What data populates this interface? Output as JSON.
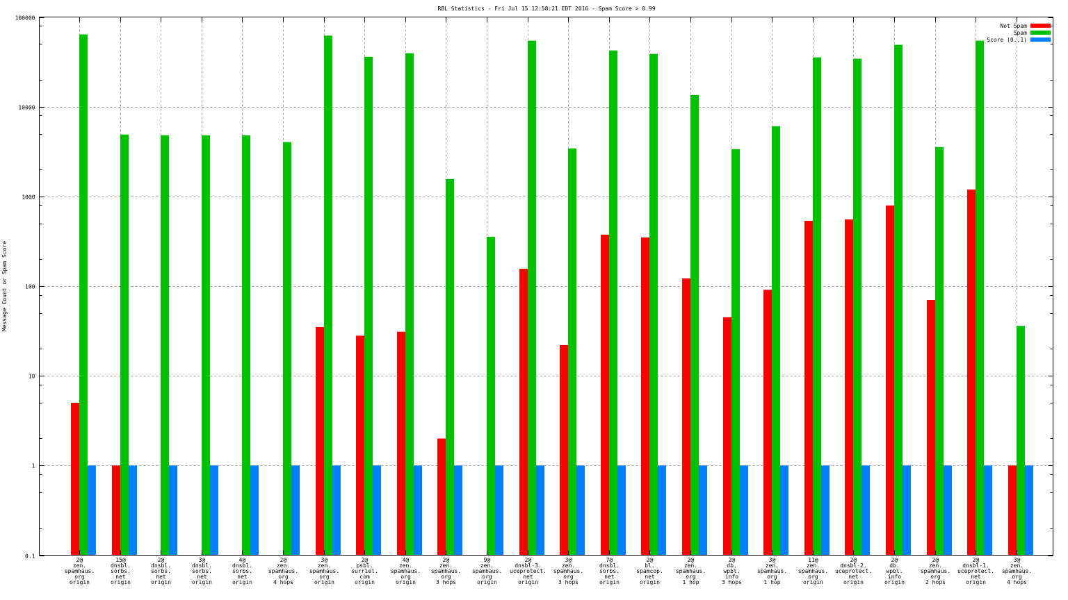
{
  "chart_data": {
    "type": "bar",
    "title": "RBL Statistics - Fri Jul 15 12:58:21 EDT 2016 - Spam Score > 0.99",
    "xlabel": "",
    "ylabel": "Message Count or Spam Score",
    "yscale": "log",
    "ylim": [
      0.1,
      100000
    ],
    "yticks": [
      "100000",
      "10000",
      "1000",
      "100",
      "10",
      "1",
      "0.1"
    ],
    "ytick_values": [
      100000,
      10000,
      1000,
      100,
      10,
      1,
      0.1
    ],
    "grid": true,
    "legend_position": "top-right",
    "categories": [
      [
        "2@",
        "zen.",
        "spamhaus.",
        "org",
        "origin"
      ],
      [
        "15@",
        "dnsbl.",
        "sorbs.",
        "net",
        "origin"
      ],
      [
        "2@",
        "dnsbl.",
        "sorbs.",
        "net",
        "origin"
      ],
      [
        "3@",
        "dnsbl.",
        "sorbs.",
        "net",
        "origin"
      ],
      [
        "4@",
        "dnsbl.",
        "sorbs.",
        "net",
        "origin"
      ],
      [
        "2@",
        "zen.",
        "spamhaus.",
        "org",
        "4 hops"
      ],
      [
        "3@",
        "zen.",
        "spamhaus.",
        "org",
        "origin"
      ],
      [
        "2@",
        "psbl.",
        "surriel.",
        "com",
        "origin"
      ],
      [
        "4@",
        "zen.",
        "spamhaus.",
        "org",
        "origin"
      ],
      [
        "2@",
        "zen.",
        "spamhaus.",
        "org",
        "3 hops"
      ],
      [
        "9@",
        "zen.",
        "spamhaus.",
        "org",
        "origin"
      ],
      [
        "2@",
        "dnsbl-3.",
        "uceprotect.",
        "net",
        "origin"
      ],
      [
        "3@",
        "zen.",
        "spamhaus.",
        "org",
        "3 hops"
      ],
      [
        "7@",
        "dnsbl.",
        "sorbs.",
        "net",
        "origin"
      ],
      [
        "2@",
        "bl.",
        "spamcop.",
        "net",
        "origin"
      ],
      [
        "2@",
        "zen.",
        "spamhaus.",
        "org",
        "1 hop"
      ],
      [
        "2@",
        "db.",
        "wpbl.",
        "info",
        "3 hops"
      ],
      [
        "3@",
        "zen.",
        "spamhaus.",
        "org",
        "1 hop"
      ],
      [
        "11@",
        "zen.",
        "spamhaus.",
        "org",
        "origin"
      ],
      [
        "2@",
        "dnsbl-2.",
        "uceprotect.",
        "net",
        "origin"
      ],
      [
        "2@",
        "db.",
        "wpbl.",
        "info",
        "origin"
      ],
      [
        "2@",
        "zen.",
        "spamhaus.",
        "org",
        "2 hops"
      ],
      [
        "2@",
        "dnsbl-1.",
        "uceprotect.",
        "net",
        "origin"
      ],
      [
        "3@",
        "zen.",
        "spamhaus.",
        "org",
        "4 hops"
      ]
    ],
    "series": [
      {
        "name": "Not Spam",
        "color": "#ff0000",
        "values": [
          5,
          1,
          null,
          null,
          null,
          null,
          35,
          28,
          31,
          2,
          null,
          156,
          22,
          375,
          349,
          122,
          45,
          91,
          535,
          555,
          793,
          70,
          1195,
          1
        ]
      },
      {
        "name": "Spam",
        "color": "#00c000",
        "values": [
          64000,
          4900,
          4800,
          4800,
          4800,
          4030,
          62000,
          36000,
          39500,
          1560,
          355,
          54500,
          3430,
          42400,
          38800,
          13500,
          3370,
          6070,
          35500,
          34300,
          49000,
          3550,
          54500,
          36
        ]
      },
      {
        "name": "Score (0..1)",
        "color": "#0080ff",
        "values": [
          1,
          1,
          1,
          1,
          1,
          1,
          1,
          1,
          1,
          1,
          1,
          1,
          1,
          1,
          1,
          1,
          1,
          1,
          1,
          1,
          1,
          1,
          1,
          1
        ]
      }
    ]
  }
}
